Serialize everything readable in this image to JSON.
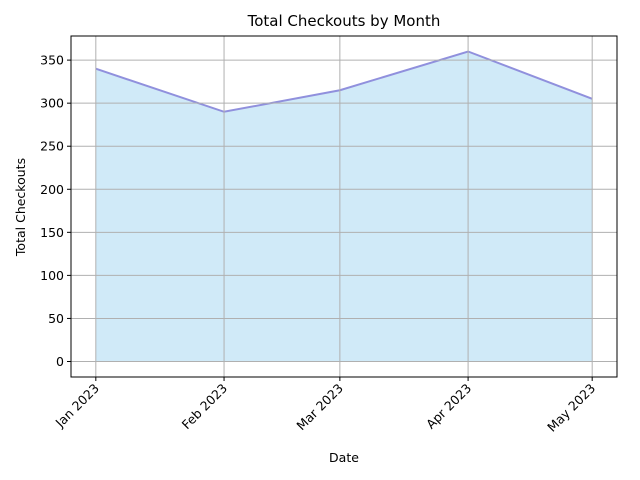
{
  "chart_data": {
    "type": "area",
    "title": "Total Checkouts by Month",
    "xlabel": "Date",
    "ylabel": "Total Checkouts",
    "categories": [
      "Jan 2023",
      "Feb 2023",
      "Mar 2023",
      "Apr 2023",
      "May 2023"
    ],
    "x": [
      "2023-01-01",
      "2023-02-01",
      "2023-03-01",
      "2023-04-01",
      "2023-05-01"
    ],
    "values": [
      340,
      290,
      315,
      360,
      305
    ],
    "ylim": [
      -18,
      378
    ],
    "yticks": [
      0,
      50,
      100,
      150,
      200,
      250,
      300,
      350
    ],
    "grid": true,
    "fill_color": "#d0eaf8",
    "line_color": "#9090dd",
    "grid_color": "#b0b0b0"
  }
}
